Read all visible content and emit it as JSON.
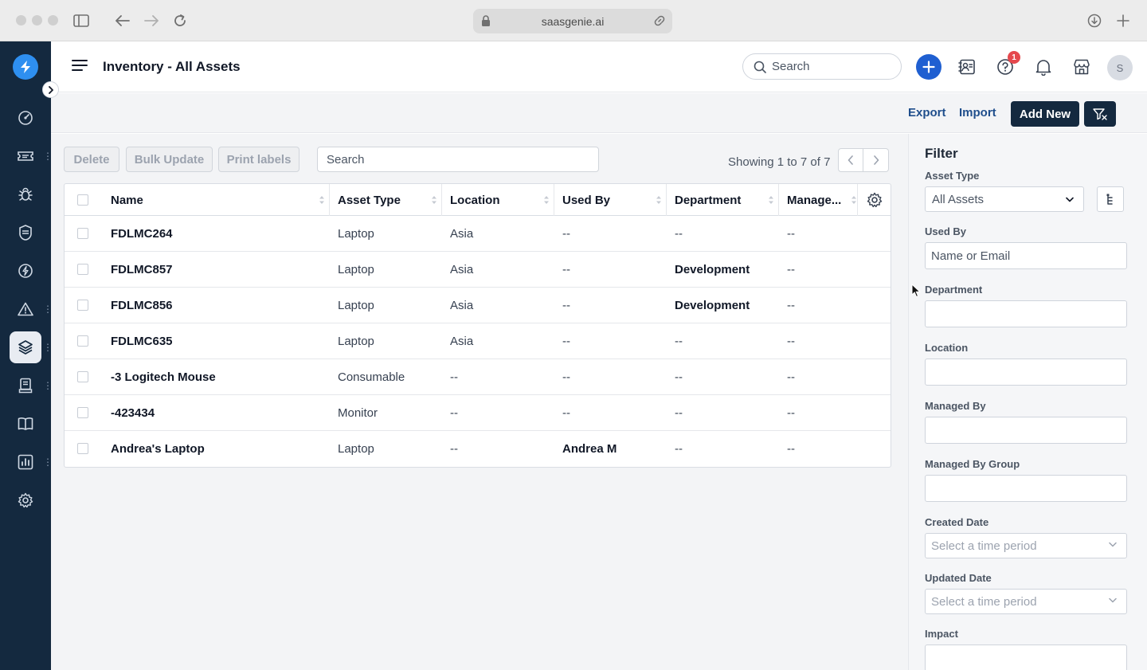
{
  "browser": {
    "url": "saasgenie.ai"
  },
  "header": {
    "title": "Inventory - All Assets",
    "search_placeholder": "Search",
    "notification_count": "1",
    "avatar_initial": "S"
  },
  "actions": {
    "export": "Export",
    "import": "Import",
    "add_new": "Add New"
  },
  "toolbar": {
    "delete": "Delete",
    "bulk_update": "Bulk Update",
    "print_labels": "Print labels",
    "search_placeholder": "Search",
    "showing": "Showing 1 to 7 of 7"
  },
  "table": {
    "columns": [
      "Name",
      "Asset Type",
      "Location",
      "Used By",
      "Department",
      "Manage..."
    ],
    "rows": [
      {
        "name": "FDLMC264",
        "asset_type": "Laptop",
        "location": "Asia",
        "used_by": "--",
        "department": "--",
        "managed_by": "--"
      },
      {
        "name": "FDLMC857",
        "asset_type": "Laptop",
        "location": "Asia",
        "used_by": "--",
        "department": "Development",
        "managed_by": "--"
      },
      {
        "name": "FDLMC856",
        "asset_type": "Laptop",
        "location": "Asia",
        "used_by": "--",
        "department": "Development",
        "managed_by": "--"
      },
      {
        "name": "FDLMC635",
        "asset_type": "Laptop",
        "location": "Asia",
        "used_by": "--",
        "department": "--",
        "managed_by": "--"
      },
      {
        "name": "-3 Logitech Mouse",
        "asset_type": "Consumable",
        "location": "--",
        "used_by": "--",
        "department": "--",
        "managed_by": "--"
      },
      {
        "name": "-423434",
        "asset_type": "Monitor",
        "location": "--",
        "used_by": "--",
        "department": "--",
        "managed_by": "--"
      },
      {
        "name": "Andrea's Laptop",
        "asset_type": "Laptop",
        "location": "--",
        "used_by": "Andrea M",
        "department": "--",
        "managed_by": "--"
      }
    ]
  },
  "filter": {
    "title": "Filter",
    "asset_type_label": "Asset Type",
    "asset_type_value": "All Assets",
    "used_by_label": "Used By",
    "used_by_placeholder": "Name or Email",
    "department_label": "Department",
    "location_label": "Location",
    "managed_by_label": "Managed By",
    "managed_by_group_label": "Managed By Group",
    "created_date_label": "Created Date",
    "created_date_placeholder": "Select a time period",
    "updated_date_label": "Updated Date",
    "updated_date_placeholder": "Select a time period",
    "impact_label": "Impact"
  },
  "icons": {
    "sidebar": [
      "dashboard-icon",
      "ticket-icon",
      "bug-icon",
      "shield-icon",
      "bolt-icon",
      "warning-icon",
      "layers-icon",
      "document-icon",
      "book-icon",
      "chart-icon",
      "settings-icon"
    ]
  },
  "colors": {
    "sidebar_bg": "#14293f",
    "accent": "#1f5fd1",
    "primary_button": "#14293f",
    "badge": "#e5484d"
  }
}
